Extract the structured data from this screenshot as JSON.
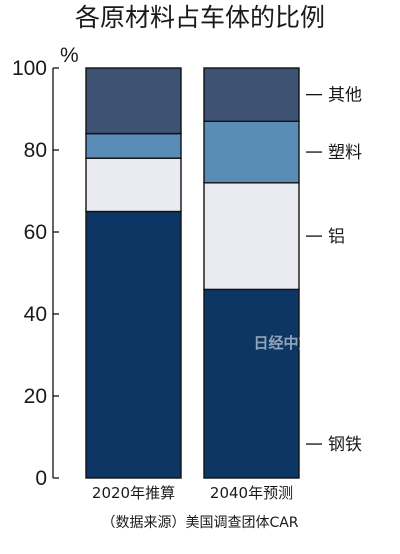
{
  "colors": {
    "steel": "#0d3665",
    "aluminum": "#e9ebf0",
    "plastic": "#5a8cb8",
    "other": "#3e5274",
    "bar_stroke": "#111111",
    "axis": "#111111"
  },
  "watermark": "日经中文版",
  "chart_data": {
    "type": "bar",
    "stacked": true,
    "title": "各原材料占车体的比例",
    "ylabel": "%",
    "xlabel": "",
    "ylim": [
      0,
      100
    ],
    "yticks": [
      0,
      20,
      40,
      60,
      80,
      100
    ],
    "categories": [
      "2020年推算",
      "2040年预测"
    ],
    "series": [
      {
        "name": "钢铁",
        "values": [
          65,
          46
        ],
        "color_key": "steel"
      },
      {
        "name": "铝",
        "values": [
          13,
          26
        ],
        "color_key": "aluminum"
      },
      {
        "name": "塑料",
        "values": [
          6,
          15
        ],
        "color_key": "plastic"
      },
      {
        "name": "其他",
        "values": [
          16,
          13
        ],
        "color_key": "other"
      }
    ],
    "legend_placement": "right, labels beside each segment",
    "grid": false,
    "source": "（数据来源）美国调查团体CAR"
  }
}
